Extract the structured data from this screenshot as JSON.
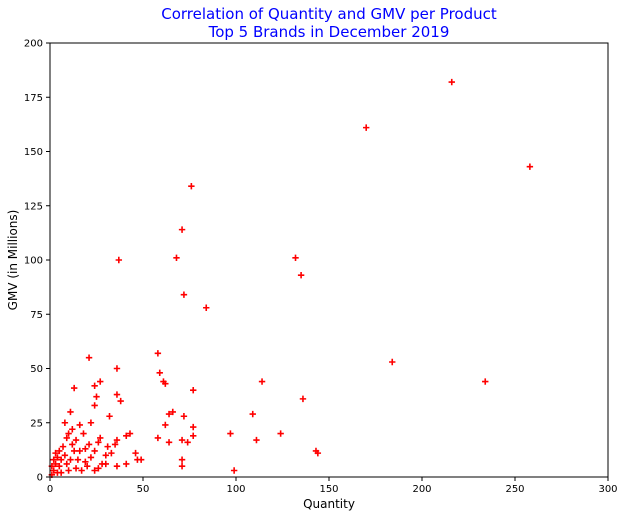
{
  "chart_data": {
    "type": "scatter",
    "title": "Correlation of Quantity and GMV per Product",
    "subtitle": "Top 5 Brands in December 2019",
    "xlabel": "Quantity",
    "ylabel": "GMV (in Millions)",
    "xlim": [
      0,
      300
    ],
    "ylim": [
      0,
      200
    ],
    "xticks": [
      0,
      50,
      100,
      150,
      200,
      250,
      300
    ],
    "yticks": [
      0,
      25,
      50,
      75,
      100,
      125,
      150,
      175,
      200
    ],
    "grid": false,
    "marker": "plus",
    "colors": {
      "marker": "#ff0000",
      "title": "#0000ff",
      "axis": "#000000"
    },
    "series": [
      {
        "points": [
          [
            216,
            182
          ],
          [
            170,
            161
          ],
          [
            258,
            143
          ],
          [
            76,
            134
          ],
          [
            71,
            114
          ],
          [
            132,
            101
          ],
          [
            68,
            101
          ],
          [
            37,
            100
          ],
          [
            135,
            93
          ],
          [
            72,
            84
          ],
          [
            84,
            78
          ],
          [
            58,
            57
          ],
          [
            21,
            55
          ],
          [
            184,
            53
          ],
          [
            36,
            50
          ],
          [
            59,
            48
          ],
          [
            61,
            44
          ],
          [
            114,
            44
          ],
          [
            234,
            44
          ],
          [
            62,
            43
          ],
          [
            27,
            44
          ],
          [
            24,
            42
          ],
          [
            13,
            41
          ],
          [
            77,
            40
          ],
          [
            25,
            37
          ],
          [
            36,
            38
          ],
          [
            38,
            35
          ],
          [
            136,
            36
          ],
          [
            24,
            33
          ],
          [
            11,
            30
          ],
          [
            72,
            28
          ],
          [
            66,
            30
          ],
          [
            64,
            29
          ],
          [
            109,
            29
          ],
          [
            32,
            28
          ],
          [
            62,
            24
          ],
          [
            77,
            23
          ],
          [
            8,
            25
          ],
          [
            22,
            25
          ],
          [
            16,
            24
          ],
          [
            43,
            20
          ],
          [
            58,
            18
          ],
          [
            71,
            17
          ],
          [
            74,
            16
          ],
          [
            77,
            19
          ],
          [
            64,
            16
          ],
          [
            111,
            17
          ],
          [
            97,
            20
          ],
          [
            124,
            20
          ],
          [
            41,
            19
          ],
          [
            27,
            18
          ],
          [
            36,
            17
          ],
          [
            143,
            12
          ],
          [
            144,
            11
          ],
          [
            46,
            11
          ],
          [
            47,
            8
          ],
          [
            49,
            8
          ],
          [
            71,
            8
          ],
          [
            71,
            5
          ],
          [
            99,
            3
          ],
          [
            36,
            5
          ],
          [
            41,
            6
          ],
          [
            30,
            6
          ],
          [
            24,
            3
          ],
          [
            31,
            14
          ],
          [
            19,
            13
          ],
          [
            14,
            17
          ],
          [
            10,
            20
          ],
          [
            12,
            22
          ],
          [
            5,
            12
          ],
          [
            3,
            6
          ],
          [
            2,
            3
          ],
          [
            8,
            10
          ],
          [
            15,
            8
          ],
          [
            20,
            5
          ],
          [
            6,
            2
          ],
          [
            12,
            15
          ],
          [
            18,
            20
          ],
          [
            9,
            6
          ],
          [
            4,
            9
          ],
          [
            1,
            1
          ],
          [
            2,
            8
          ],
          [
            7,
            14
          ],
          [
            10,
            3
          ],
          [
            16,
            12
          ],
          [
            22,
            9
          ],
          [
            26,
            16
          ],
          [
            30,
            10
          ],
          [
            35,
            15
          ],
          [
            28,
            6
          ],
          [
            14,
            4
          ],
          [
            11,
            8
          ],
          [
            5,
            5
          ],
          [
            3,
            11
          ],
          [
            17,
            3
          ],
          [
            21,
            15
          ],
          [
            24,
            12
          ],
          [
            33,
            11
          ],
          [
            1,
            5
          ],
          [
            6,
            8
          ],
          [
            13,
            12
          ],
          [
            9,
            18
          ],
          [
            19,
            7
          ],
          [
            26,
            4
          ],
          [
            4,
            2
          ]
        ]
      }
    ]
  }
}
